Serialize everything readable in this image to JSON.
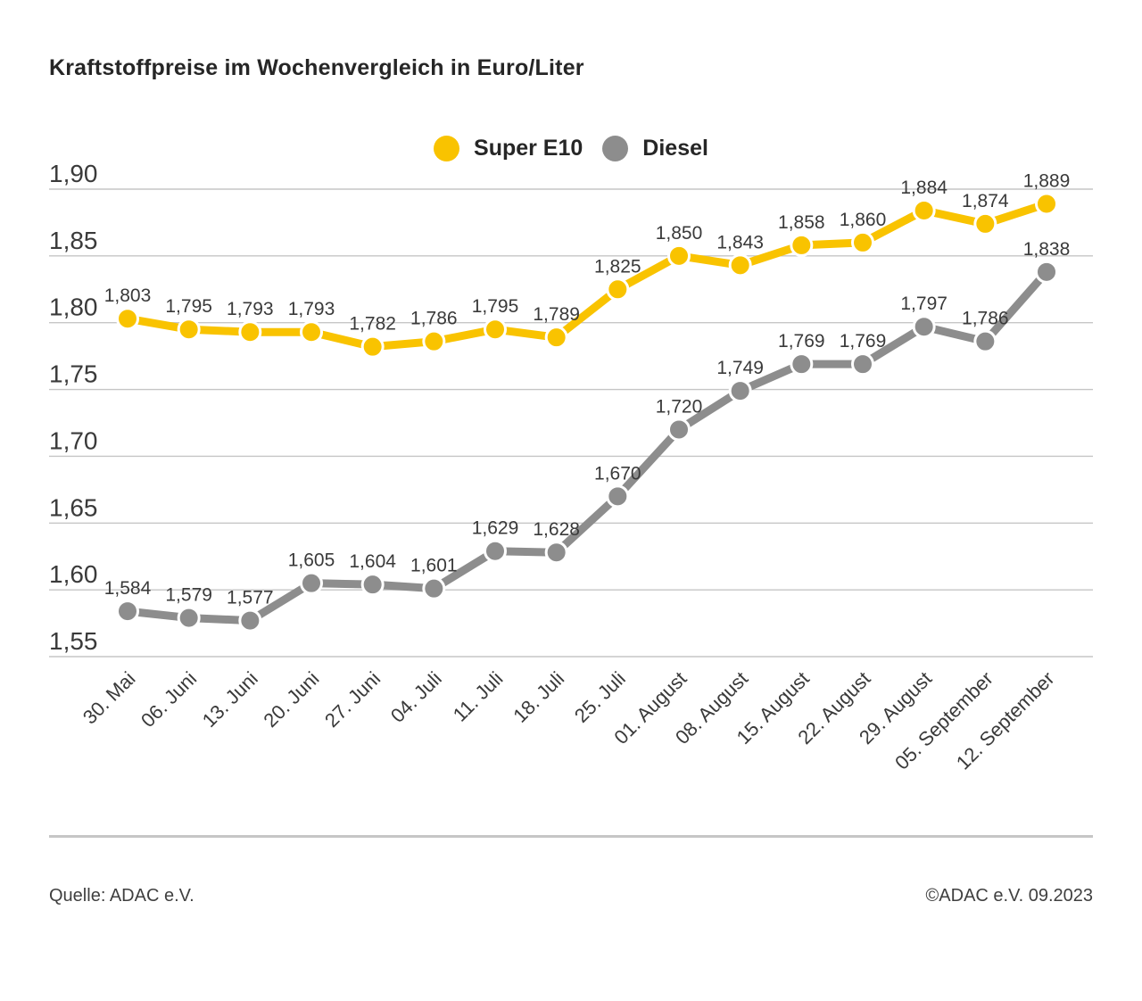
{
  "page": {
    "title": "Kraftstoffpreise im Wochenvergleich in Euro/Liter"
  },
  "chart_data": {
    "type": "line",
    "title": "Kraftstoffpreise im Wochenvergleich in Euro/Liter",
    "legend_position": "top",
    "grid": true,
    "x_tick_rotation": -45,
    "categories": [
      "30. Mai",
      "06. Juni",
      "13. Juni",
      "20. Juni",
      "27. Juni",
      "04. Juli",
      "11. Juli",
      "18. Juli",
      "25. Juli",
      "01. August",
      "08. August",
      "15. August",
      "22. August",
      "29. August",
      "05. September",
      "12. September"
    ],
    "series": [
      {
        "name": "Super E10",
        "color": "#f9c300",
        "values": [
          1.803,
          1.795,
          1.793,
          1.793,
          1.782,
          1.786,
          1.795,
          1.789,
          1.825,
          1.85,
          1.843,
          1.858,
          1.86,
          1.884,
          1.874,
          1.889
        ],
        "labels": [
          "1,803",
          "1,795",
          "1,793",
          "1,793",
          "1,782",
          "1,786",
          "1,795",
          "1,789",
          "1,825",
          "1,850",
          "1,843",
          "1,858",
          "1,860",
          "1,884",
          "1,874",
          "1,889"
        ]
      },
      {
        "name": "Diesel",
        "color": "#8d8d8d",
        "values": [
          1.584,
          1.579,
          1.577,
          1.605,
          1.604,
          1.601,
          1.629,
          1.628,
          1.67,
          1.72,
          1.749,
          1.769,
          1.769,
          1.797,
          1.786,
          1.838
        ],
        "labels": [
          "1,584",
          "1,579",
          "1,577",
          "1,605",
          "1,604",
          "1,601",
          "1,629",
          "1,628",
          "1,670",
          "1,720",
          "1,749",
          "1,769",
          "1,769",
          "1,797",
          "1,786",
          "1,838"
        ]
      }
    ],
    "y_axis": {
      "min": 1.55,
      "max": 1.9,
      "step": 0.05,
      "tick_labels": [
        "1,55",
        "1,60",
        "1,65",
        "1,70",
        "1,75",
        "1,80",
        "1,85",
        "1,90"
      ]
    }
  },
  "colors": {
    "grid": "#c6c6c6",
    "text": "#3a3a3a"
  },
  "footer": {
    "source": "Quelle: ADAC e.V.",
    "copyright": "©ADAC e.V. 09.2023"
  }
}
